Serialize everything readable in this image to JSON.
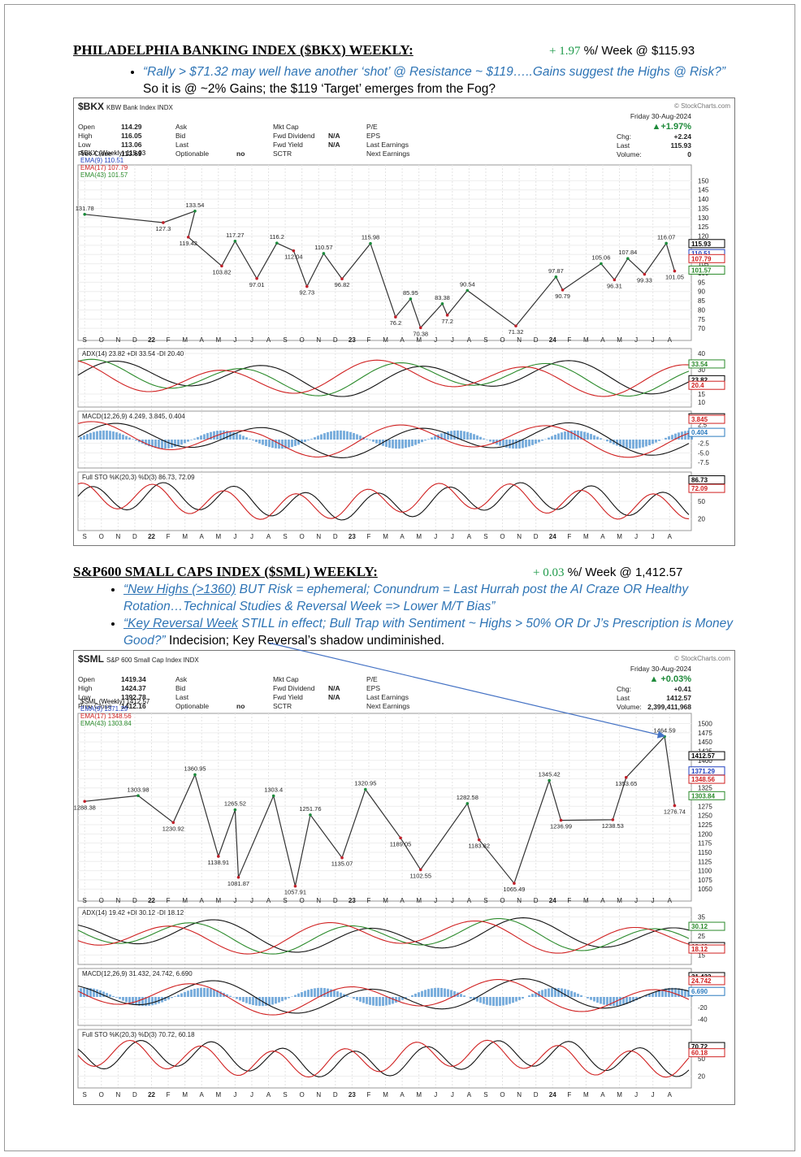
{
  "sections": [
    {
      "title": "PHILADELPHIA BANKING INDEX ($BKX) WEEKLY:",
      "change": "+ 1.97",
      "change_suffix": "%/ Week @ $115.93",
      "bullets": [
        {
          "parts": [
            {
              "text": "“Rally > $71.32 may well have another ‘shot’ @ Resistance ~ $119…..Gains suggest the Highs @ Risk?”",
              "style": "quote"
            },
            {
              "text": "  So it is @ ~2% Gains; the $119 ‘Target’ emerges from the Fog?",
              "style": "plain"
            }
          ]
        }
      ]
    },
    {
      "title": "S&P600 SMALL CAPS INDEX ($SML) WEEKLY:",
      "change": "+ 0.03",
      "change_suffix": "%/ Week @ 1,412.57",
      "bullets": [
        {
          "parts": [
            {
              "text": "“New Highs (>1360)",
              "style": "quote-underline"
            },
            {
              "text": " BUT Risk = ephemeral; Conundrum = Last Hurrah post the AI Craze OR Healthy Rotation…Technical Studies & Reversal Week => Lower M/T Bias”",
              "style": "quote"
            }
          ]
        },
        {
          "parts": [
            {
              "text": "“Key Reversal Week",
              "style": "quote-underline"
            },
            {
              "text": " STILL in effect; Bull Trap with Sentiment ~ Highs > 50% OR Dr J’s Prescription is Money Good?”",
              "style": "quote"
            },
            {
              "text": "    Indecision; Key Reversal’s shadow undiminished.",
              "style": "plain"
            }
          ]
        }
      ]
    }
  ],
  "charts": [
    {
      "symbol": "$BKX",
      "name": "KBW Bank Index  INDX",
      "source": "© StockCharts.com",
      "date": "Friday  30-Aug-2024",
      "change": "▲+1.97%",
      "right_info": [
        {
          "label": "Chg:",
          "value": "+2.24"
        },
        {
          "label": "Last",
          "value": 115.93
        },
        {
          "label": "Volume:",
          "value": 0
        }
      ],
      "info": [
        [
          {
            "label": "Open",
            "value": 114.29
          },
          {
            "label": "High",
            "value": 116.05
          },
          {
            "label": "Low",
            "value": 113.06
          },
          {
            "label": "Prev Close",
            "value": 113.69
          }
        ],
        [
          {
            "label": "Ask"
          },
          {
            "label": "Bid"
          },
          {
            "label": "Last"
          },
          {
            "label": "Optionable",
            "value": "no"
          }
        ],
        [
          {
            "label": "Mkt Cap"
          },
          {
            "label": "Fwd Dividend",
            "value": "N/A"
          },
          {
            "label": "Fwd Yield",
            "value": "N/A"
          },
          {
            "label": "SCTR"
          }
        ],
        [
          {
            "label": "P/E"
          },
          {
            "label": "EPS"
          },
          {
            "label": "Last Earnings"
          },
          {
            "label": "Next Earnings"
          }
        ]
      ],
      "legend": [
        {
          "text": "$BKX (Weekly) 115.93",
          "color": "#000000"
        },
        {
          "text": "EMA(9) 110.51",
          "color": "#1f3fbf"
        },
        {
          "text": "EMA(17) 107.79",
          "color": "#d02020"
        },
        {
          "text": "EMA(43) 101.57",
          "color": "#2a8a2a"
        }
      ],
      "months": [
        "S",
        "O",
        "N",
        "D",
        "22",
        "F",
        "M",
        "A",
        "M",
        "J",
        "J",
        "A",
        "S",
        "O",
        "N",
        "D",
        "23",
        "F",
        "M",
        "A",
        "M",
        "J",
        "J",
        "A",
        "S",
        "O",
        "N",
        "D",
        "24",
        "F",
        "M",
        "A",
        "M",
        "J",
        "J",
        "A"
      ],
      "xlim": [
        -0.4,
        36.3
      ],
      "ylim": [
        67,
        155
      ],
      "yticks": [
        70,
        75,
        80,
        85,
        90,
        95,
        100,
        105,
        110,
        115,
        120,
        125,
        130,
        135,
        140,
        145,
        150
      ],
      "annotations": [
        {
          "x": 0,
          "value": 131.78
        },
        {
          "x": 4.7,
          "value": 127.3
        },
        {
          "x": 6.6,
          "value": 133.54
        },
        {
          "x": 6.2,
          "value": 119.42
        },
        {
          "x": 8.2,
          "value": 103.82
        },
        {
          "x": 9,
          "value": 117.27
        },
        {
          "x": 10.3,
          "value": 97.01
        },
        {
          "x": 11.5,
          "value": 116.2
        },
        {
          "x": 12.5,
          "value": 112.04
        },
        {
          "x": 13.3,
          "value": 92.73
        },
        {
          "x": 14.3,
          "value": 110.57
        },
        {
          "x": 15.4,
          "value": 96.82
        },
        {
          "x": 17.1,
          "value": 115.98
        },
        {
          "x": 18.6,
          "value": 76.2
        },
        {
          "x": 19.5,
          "value": 85.95
        },
        {
          "x": 20.1,
          "value": 70.38
        },
        {
          "x": 21.4,
          "value": 83.38
        },
        {
          "x": 21.7,
          "value": 77.2
        },
        {
          "x": 22.9,
          "value": 90.54
        },
        {
          "x": 25.8,
          "value": 71.32
        },
        {
          "x": 28.2,
          "value": 97.87
        },
        {
          "x": 28.6,
          "value": 90.79
        },
        {
          "x": 30.9,
          "value": 105.06
        },
        {
          "x": 31.7,
          "value": 96.31
        },
        {
          "x": 32.5,
          "value": 107.84
        },
        {
          "x": 33.5,
          "value": 99.33
        },
        {
          "x": 34.8,
          "value": 116.07
        },
        {
          "x": 35.3,
          "value": 101.05
        }
      ],
      "tags": [
        115.93,
        110.51,
        107.79,
        101.57
      ],
      "tag_colors": [
        "#000000",
        "#1f3fbf",
        "#d02020",
        "#2a8a2a"
      ],
      "panels": [
        {
          "label": "ADX(14) 23.82 +DI 33.54 -DI 20.40",
          "ylim": [
            7,
            43
          ],
          "yticks": [
            10,
            15,
            30,
            40
          ],
          "tags": [
            33.54,
            23.82,
            20.4
          ],
          "tag_colors": [
            "#2a8a2a",
            "#000000",
            "#d02020"
          ]
        },
        {
          "label": "MACD(12,26,9) 4.249, 3.845, 0.404",
          "ylim": [
            -9,
            6
          ],
          "yticks": [
            {
              "value": -7.5,
              "label": "-7.5"
            },
            {
              "value": -5,
              "label": "-5.0"
            },
            {
              "value": -2.5,
              "label": "-2.5"
            },
            {
              "value": 2.5,
              "label": "2.5"
            }
          ],
          "tags": [
            4.249,
            3.845,
            0.404
          ],
          "tag_colors": [
            "#000000",
            "#d02020",
            "#2b7bbf"
          ]
        },
        {
          "label": "Full STO %K(20,3) %D(3) 86.73, 72.09",
          "ylim": [
            0,
            100
          ],
          "yticks": [
            20,
            50
          ],
          "tags": [
            86.73,
            72.09
          ],
          "tag_colors": [
            "#000000",
            "#d02020"
          ]
        }
      ]
    },
    {
      "symbol": "$SML",
      "name": "S&P 600 Small Cap Index  INDX",
      "source": "© StockCharts.com",
      "date": "Friday  30-Aug-2024",
      "change": "▲ +0.03%",
      "right_info": [
        {
          "label": "Chg:",
          "value": "+0.41"
        },
        {
          "label": "Last",
          "value": 1412.57
        },
        {
          "label": "Volume:",
          "value": "2,399,411,968"
        }
      ],
      "info": [
        [
          {
            "label": "Open",
            "value": 1419.34
          },
          {
            "label": "High",
            "value": 1424.37
          },
          {
            "label": "Low",
            "value": 1392.78
          },
          {
            "label": "Prev Close",
            "value": 1412.16
          }
        ],
        [
          {
            "label": "Ask"
          },
          {
            "label": "Bid"
          },
          {
            "label": "Last"
          },
          {
            "label": "Optionable",
            "value": "no"
          }
        ],
        [
          {
            "label": "Mkt Cap"
          },
          {
            "label": "Fwd Dividend",
            "value": "N/A"
          },
          {
            "label": "Fwd Yield",
            "value": "N/A"
          },
          {
            "label": "SCTR"
          }
        ],
        [
          {
            "label": "P/E"
          },
          {
            "label": "EPS"
          },
          {
            "label": "Last Earnings"
          },
          {
            "label": "Next Earnings"
          }
        ]
      ],
      "legend": [
        {
          "text": "$SML (Weekly) 1412.57",
          "color": "#000000"
        },
        {
          "text": "EMA(9) 1371.29",
          "color": "#1f3fbf"
        },
        {
          "text": "EMA(17) 1348.56",
          "color": "#d02020"
        },
        {
          "text": "EMA(43) 1303.84",
          "color": "#2a8a2a"
        }
      ],
      "months": [
        "S",
        "O",
        "N",
        "D",
        "22",
        "F",
        "M",
        "A",
        "M",
        "J",
        "J",
        "A",
        "S",
        "O",
        "N",
        "D",
        "23",
        "F",
        "M",
        "A",
        "M",
        "J",
        "J",
        "A",
        "S",
        "O",
        "N",
        "D",
        "24",
        "F",
        "M",
        "A",
        "M",
        "J",
        "J",
        "A"
      ],
      "xlim": [
        -0.4,
        36.3
      ],
      "ylim": [
        1035,
        1510
      ],
      "yticks": [
        1050,
        1075,
        1100,
        1125,
        1150,
        1175,
        1200,
        1225,
        1250,
        1275,
        1300,
        1325,
        1350,
        1375,
        1400,
        1425,
        1450,
        1475,
        1500
      ],
      "annotations": [
        {
          "x": 0,
          "value": 1288.38
        },
        {
          "x": 3.2,
          "value": 1303.98
        },
        {
          "x": 5.3,
          "value": 1230.92
        },
        {
          "x": 6.6,
          "value": 1360.95
        },
        {
          "x": 8,
          "value": 1138.91
        },
        {
          "x": 9,
          "value": 1265.52
        },
        {
          "x": 9.2,
          "value": 1081.87
        },
        {
          "x": 11.3,
          "value": 1303.4
        },
        {
          "x": 12.6,
          "value": 1057.91
        },
        {
          "x": 13.5,
          "value": 1251.76
        },
        {
          "x": 15.4,
          "value": 1135.07
        },
        {
          "x": 16.8,
          "value": 1320.95
        },
        {
          "x": 18.9,
          "value": 1189.05
        },
        {
          "x": 20.1,
          "value": 1102.55
        },
        {
          "x": 22.9,
          "value": 1282.58
        },
        {
          "x": 23.6,
          "value": 1183.82
        },
        {
          "x": 25.7,
          "value": 1065.49
        },
        {
          "x": 27.8,
          "value": 1345.42
        },
        {
          "x": 28.5,
          "value": 1236.99
        },
        {
          "x": 31.6,
          "value": 1238.53
        },
        {
          "x": 32.4,
          "value": 1353.65
        },
        {
          "x": 34.7,
          "value": 1464.59
        },
        {
          "x": 35.3,
          "value": 1276.74
        }
      ],
      "tags": [
        1412.57,
        1371.29,
        1348.56,
        1303.84
      ],
      "tag_colors": [
        "#000000",
        "#1f3fbf",
        "#d02020",
        "#2a8a2a"
      ],
      "panels": [
        {
          "label": "ADX(14) 19.42 +DI 30.12 -DI 18.12",
          "ylim": [
            10,
            40
          ],
          "yticks": [
            15,
            25,
            35
          ],
          "tags": [
            30.12,
            19.42,
            18.12
          ],
          "tag_colors": [
            "#2a8a2a",
            "#000000",
            "#d02020"
          ]
        },
        {
          "label": "MACD(12,26,9) 31.432, 24.742, 6.690",
          "ylim": [
            -50,
            45
          ],
          "yticks": [
            -40,
            -20
          ],
          "tags": [
            31.432,
            24.742,
            {
              "value": 6.69,
              "label": "6.690"
            }
          ],
          "tag_colors": [
            "#000000",
            "#d02020",
            "#2b7bbf"
          ]
        },
        {
          "label": "Full STO %K(20,3) %D(3) 70.72, 60.18",
          "ylim": [
            0,
            100
          ],
          "yticks": [
            20,
            50
          ],
          "tags": [
            70.72,
            60.18
          ],
          "tag_colors": [
            "#000000",
            "#d02020"
          ]
        }
      ]
    }
  ]
}
